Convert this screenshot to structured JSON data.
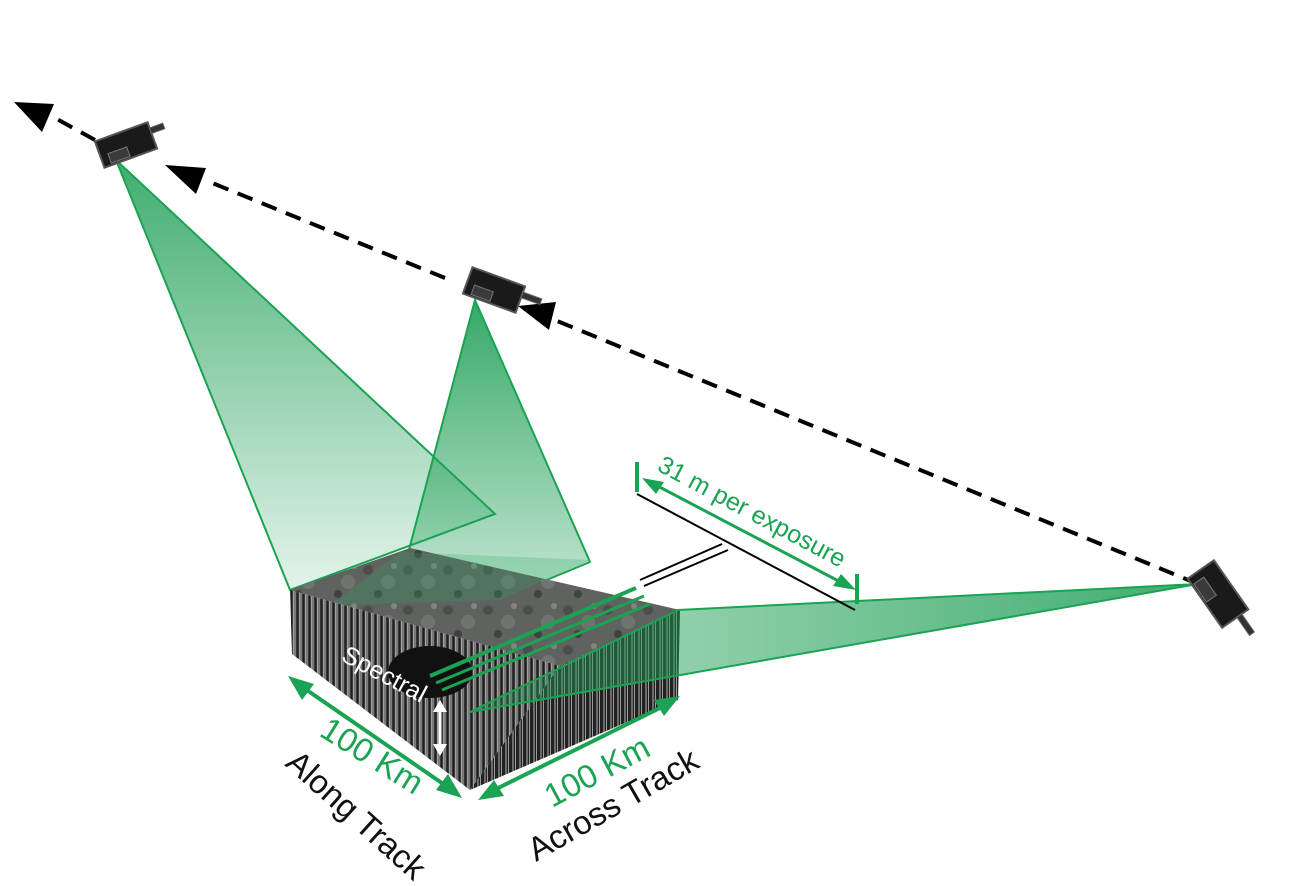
{
  "labels": {
    "exposure": "31 m per exposure",
    "spectral": "Spectral",
    "along_km": "100 Km",
    "along_track": "Along Track",
    "across_km": "100 Km",
    "across_track": "Across Track"
  },
  "colors": {
    "accent_green": "#1aa352",
    "cone_fill": "#2aa860",
    "arrow": "#000000",
    "satellite_body": "#1a1a1a"
  },
  "icons": {
    "satellite": "satellite-icon",
    "arrow": "arrow-head-icon",
    "cube": "hyperspectral-cube-icon"
  }
}
